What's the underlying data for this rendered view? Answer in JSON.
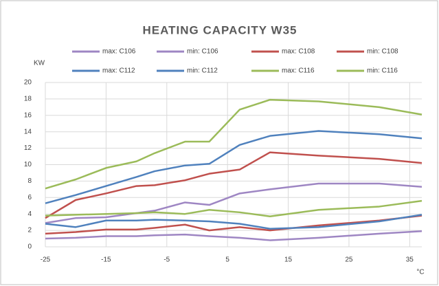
{
  "chart_data": {
    "type": "line",
    "title": "HEATING CAPACITY W35",
    "y_axis_label": "KW",
    "x_axis_label": "°C",
    "x": [
      -25,
      -20,
      -15,
      -10,
      -7,
      -2,
      2,
      7,
      12,
      20,
      30,
      37
    ],
    "xlim": [
      -25,
      37
    ],
    "xticks": [
      -25,
      -15,
      -5,
      5,
      15,
      25,
      35
    ],
    "ylim": [
      0,
      20
    ],
    "yticks": [
      0,
      2,
      4,
      6,
      8,
      10,
      12,
      14,
      16,
      18,
      20
    ],
    "grid": true,
    "series": [
      {
        "name": "max: C106",
        "color": "#9e86c3",
        "values": [
          2.9,
          3.5,
          3.6,
          4.1,
          4.4,
          5.4,
          5.1,
          6.5,
          7.0,
          7.7,
          7.7,
          7.3
        ]
      },
      {
        "name": "min: C106",
        "color": "#9e86c3",
        "values": [
          1.0,
          1.1,
          1.3,
          1.3,
          1.4,
          1.5,
          1.3,
          1.1,
          0.8,
          1.1,
          1.6,
          1.9
        ]
      },
      {
        "name": "max: C108",
        "color": "#c0504d",
        "values": [
          3.5,
          5.7,
          6.5,
          7.4,
          7.5,
          8.1,
          8.9,
          9.4,
          11.5,
          11.1,
          10.7,
          10.2
        ]
      },
      {
        "name": "min: C108",
        "color": "#c0504d",
        "values": [
          1.6,
          1.8,
          2.1,
          2.1,
          2.3,
          2.7,
          2.0,
          2.4,
          2.0,
          2.6,
          3.2,
          3.8
        ]
      },
      {
        "name": "max: C112",
        "color": "#4f81bd",
        "values": [
          5.3,
          6.3,
          7.4,
          8.5,
          9.2,
          9.9,
          10.1,
          12.4,
          13.5,
          14.1,
          13.7,
          13.2
        ]
      },
      {
        "name": "min: C112",
        "color": "#4f81bd",
        "values": [
          2.8,
          2.4,
          3.2,
          3.2,
          3.3,
          3.2,
          3.1,
          2.8,
          2.2,
          2.4,
          3.1,
          3.9
        ]
      },
      {
        "name": "max: C116",
        "color": "#9bbb59",
        "values": [
          7.1,
          8.2,
          9.6,
          10.4,
          11.4,
          12.8,
          12.8,
          16.7,
          17.9,
          17.7,
          17.0,
          16.1
        ]
      },
      {
        "name": "min: C116",
        "color": "#9bbb59",
        "values": [
          3.8,
          3.9,
          4.0,
          4.1,
          4.2,
          4.0,
          4.5,
          4.2,
          3.7,
          4.5,
          4.9,
          5.6
        ]
      }
    ]
  }
}
